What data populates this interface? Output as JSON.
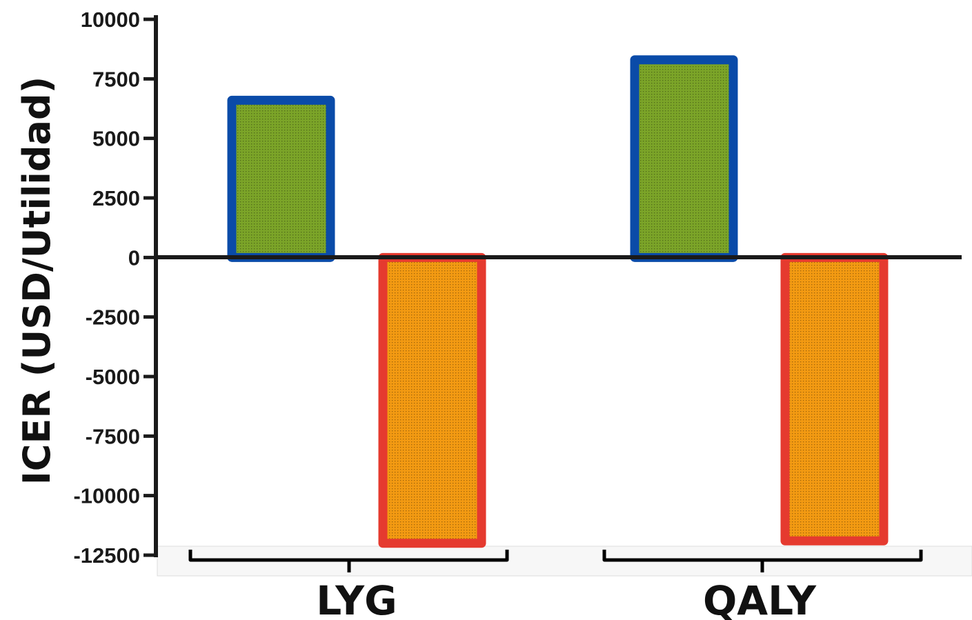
{
  "chart_data": {
    "type": "bar",
    "title": "",
    "ylabel": "ICER (USD/Utilidad)",
    "xlabel": "",
    "categories": [
      "LYG",
      "QALY"
    ],
    "series": [
      {
        "values": [
          6600,
          8300
        ],
        "fill": "#7ba428",
        "stroke": "#0a4ba8"
      },
      {
        "values": [
          -12000,
          -11900
        ],
        "fill": "#f39a12",
        "stroke": "#e53a2f"
      }
    ],
    "ylim": [
      -12500,
      10000
    ],
    "yticks": [
      10000,
      7500,
      5000,
      2500,
      0,
      -2500,
      -5000,
      -7500,
      -10000,
      -12500
    ],
    "ytick_labels": [
      "10000",
      "7500",
      "5000",
      "2500",
      "0",
      "-2500",
      "-5000",
      "-7500",
      "-10000",
      "-12500"
    ],
    "grid": false,
    "legend": "none"
  }
}
